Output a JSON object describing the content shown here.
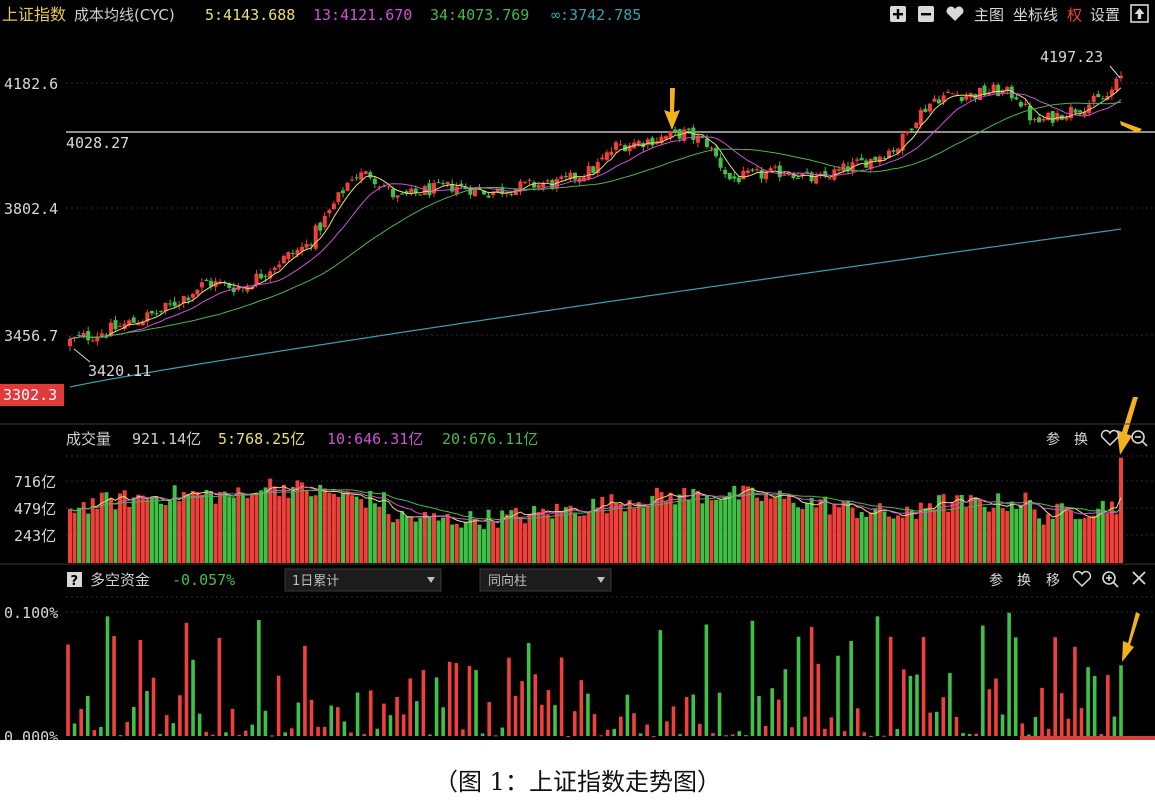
{
  "header": {
    "index_name": "上证指数",
    "indicator": "成本均线(CYC)",
    "ma5": "5:4143.688",
    "ma13": "13:4121.670",
    "ma34": "34:4073.769",
    "ma_inf": "∞:3742.785",
    "btn_main": "主图",
    "btn_axis": "坐标线",
    "btn_right": "权",
    "btn_settings": "设置"
  },
  "price_labels": {
    "p1": "4182.6",
    "p2": "3802.4",
    "p3": "3456.7",
    "low_axis": "3302.3",
    "high_mark": "4197.23",
    "low_mark": "3420.11",
    "hline_label": "4028.27"
  },
  "volume_panel": {
    "title": "成交量",
    "value": "921.14亿",
    "ma5": "5:768.25亿",
    "ma10": "10:646.31亿",
    "ma20": "20:676.11亿",
    "btn_param": "参",
    "btn_switch": "换",
    "axis": [
      "716亿",
      "479亿",
      "243亿"
    ]
  },
  "fund_panel": {
    "help": "?",
    "title": "多空资金",
    "value": "-0.057%",
    "select1": "1日累计",
    "select2": "同向柱",
    "btn_param": "参",
    "btn_switch": "换",
    "btn_move": "移",
    "axis_top": "0.100%",
    "axis_bottom": "0.000%"
  },
  "caption": "（图 1：上证指数走势图）",
  "colors": {
    "up": "#f0403c",
    "down": "#3fc046",
    "ma5": "#e8e070",
    "ma13": "#d050d8",
    "ma34": "#46b84a",
    "ma_inf": "#3aa0b0",
    "arrow": "#f2b21e",
    "axis_text": "#d8d8d8",
    "header_gold": "#e6c84a"
  },
  "chart_data": {
    "type": "candlestick",
    "title": "上证指数",
    "price_axis_ticks": [
      3456.7,
      3802.4,
      4182.6
    ],
    "price_ylim": [
      3302.3,
      4270
    ],
    "high_mark": 4197.23,
    "low_mark": 3420.11,
    "horizontal_line": 4028.27,
    "series_ma": [
      {
        "name": "5",
        "last": 4143.688
      },
      {
        "name": "13",
        "last": 4121.67
      },
      {
        "name": "34",
        "last": 4073.769
      },
      {
        "name": "∞",
        "last": 3742.785
      }
    ],
    "volume": {
      "ticks_yi": [
        243,
        479,
        716
      ],
      "last_yi": 921.14,
      "ma5_yi": 768.25,
      "ma10_yi": 646.31,
      "ma20_yi": 676.11
    },
    "fund_flow": {
      "ticks_pct": [
        0.0,
        0.1
      ],
      "last_pct": -0.057
    }
  }
}
